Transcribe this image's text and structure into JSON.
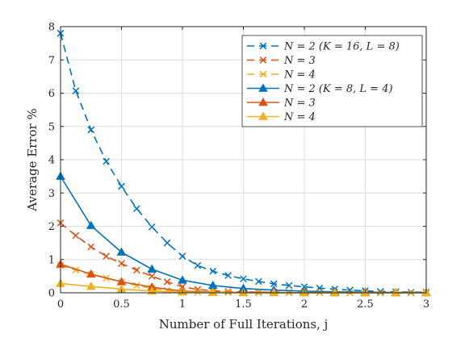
{
  "chart_data": {
    "type": "line",
    "title": "",
    "xlabel": "Number of Full Iterations, j",
    "ylabel": "Average Error %",
    "xlim": [
      0,
      3
    ],
    "ylim": [
      0,
      8
    ],
    "xticks": [
      0,
      0.5,
      1,
      1.5,
      2,
      2.5,
      3
    ],
    "xtick_labels": [
      "0",
      "0.5",
      "1",
      "1.5",
      "2",
      "2.5",
      "3"
    ],
    "yticks": [
      0,
      1,
      2,
      3,
      4,
      5,
      6,
      7,
      8
    ],
    "ytick_labels": [
      "0",
      "1",
      "2",
      "3",
      "4",
      "5",
      "6",
      "7",
      "8"
    ],
    "grid": true,
    "legend_position": "top-right",
    "colors": {
      "blue": "#0072BD",
      "orange": "#D95319",
      "yellow": "#EDB120"
    },
    "series": [
      {
        "name": "N = 2 (K = 16, L = 8)",
        "color": "#0072BD",
        "line": "dashed",
        "marker": "x",
        "x": [
          0,
          0.125,
          0.25,
          0.375,
          0.5,
          0.625,
          0.75,
          0.875,
          1,
          1.125,
          1.25,
          1.375,
          1.5,
          1.625,
          1.75,
          1.875,
          2,
          2.125,
          2.25,
          2.375,
          2.5,
          2.625,
          2.75,
          2.875,
          3
        ],
        "y": [
          7.8,
          6.07,
          4.9,
          3.95,
          3.2,
          2.53,
          1.98,
          1.5,
          1.1,
          0.82,
          0.65,
          0.52,
          0.42,
          0.34,
          0.27,
          0.22,
          0.18,
          0.14,
          0.11,
          0.08,
          0.06,
          0.04,
          0.03,
          0.02,
          0.02
        ]
      },
      {
        "name": "N = 3",
        "color": "#D95319",
        "line": "dashed",
        "marker": "x",
        "x": [
          0,
          0.125,
          0.25,
          0.375,
          0.5,
          0.625,
          0.75,
          0.875,
          1,
          1.125,
          1.25,
          1.375,
          1.5,
          1.625,
          1.75,
          1.875,
          2,
          2.125,
          2.25,
          2.375,
          2.5,
          2.625,
          2.75,
          2.875,
          3
        ],
        "y": [
          2.1,
          1.72,
          1.38,
          1.1,
          0.88,
          0.68,
          0.5,
          0.33,
          0.18,
          0.1,
          0.06,
          0.04,
          0.03,
          0.02,
          0.02,
          0.01,
          0.01,
          0.01,
          0.01,
          0,
          0,
          0,
          0,
          0,
          0
        ]
      },
      {
        "name": "N = 4",
        "color": "#EDB120",
        "line": "dashed",
        "marker": "x",
        "x": [
          0,
          0.125,
          0.25,
          0.375,
          0.5,
          0.625,
          0.75,
          0.875,
          1,
          1.125,
          1.25,
          1.375,
          1.5,
          1.625,
          1.75,
          1.875,
          2,
          2.125,
          2.25,
          2.375,
          2.5,
          2.625,
          2.75,
          2.875,
          3
        ],
        "y": [
          0.82,
          0.68,
          0.55,
          0.44,
          0.32,
          0.22,
          0.13,
          0.07,
          0.03,
          0.02,
          0.01,
          0.01,
          0,
          0,
          0,
          0,
          0,
          0,
          0,
          0,
          0,
          0,
          0,
          0,
          0
        ]
      },
      {
        "name": "N = 2 (K = 8, L = 4)",
        "color": "#0072BD",
        "line": "solid",
        "marker": "triangle",
        "x": [
          0,
          0.25,
          0.5,
          0.75,
          1,
          1.25,
          1.5,
          1.75,
          2,
          2.25,
          2.5,
          2.75,
          3
        ],
        "y": [
          3.5,
          2.02,
          1.22,
          0.71,
          0.38,
          0.22,
          0.13,
          0.08,
          0.05,
          0.03,
          0.02,
          0.01,
          0.01
        ]
      },
      {
        "name": "N = 3",
        "color": "#D95319",
        "line": "solid",
        "marker": "triangle",
        "x": [
          0,
          0.25,
          0.5,
          0.75,
          1,
          1.25,
          1.5,
          1.75,
          2,
          2.25,
          2.5,
          2.75,
          3
        ],
        "y": [
          0.86,
          0.56,
          0.33,
          0.17,
          0.05,
          0.02,
          0.01,
          0.01,
          0,
          0,
          0,
          0,
          0
        ]
      },
      {
        "name": "N = 4",
        "color": "#EDB120",
        "line": "solid",
        "marker": "triangle",
        "x": [
          0,
          0.25,
          0.5,
          0.75,
          1,
          1.25,
          1.5,
          1.75,
          2,
          2.25,
          2.5,
          2.75,
          3
        ],
        "y": [
          0.28,
          0.19,
          0.11,
          0.05,
          0.02,
          0.01,
          0,
          0,
          0,
          0,
          0,
          0,
          0
        ]
      }
    ]
  }
}
